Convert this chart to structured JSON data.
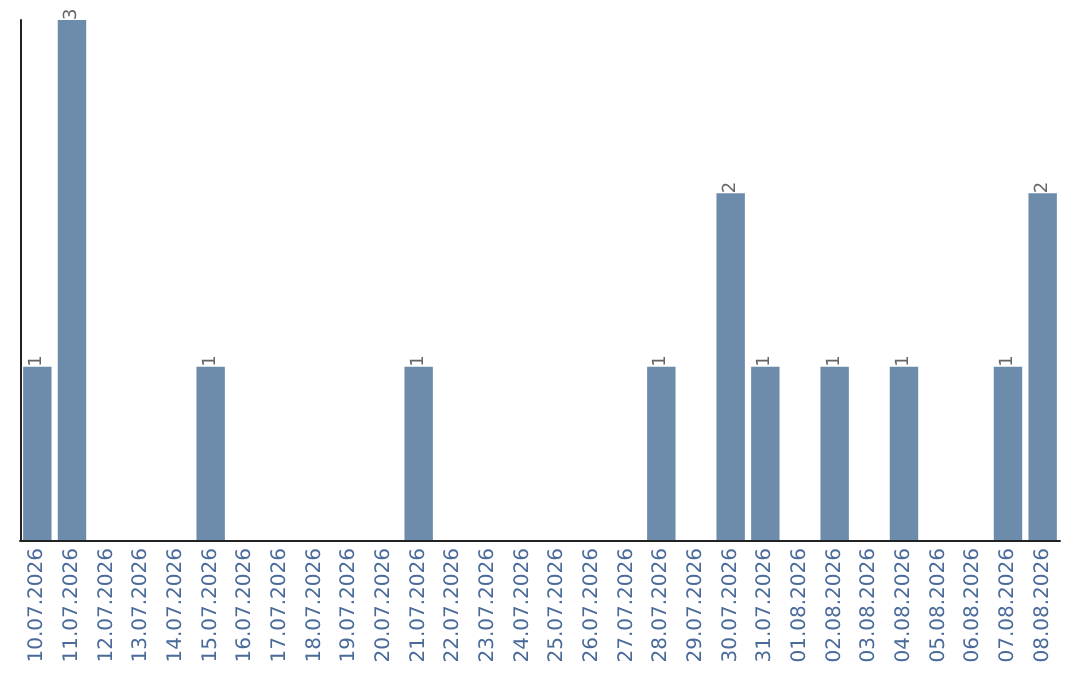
{
  "chart_data": {
    "type": "bar",
    "categories": [
      "10.07.2026",
      "11.07.2026",
      "12.07.2026",
      "13.07.2026",
      "14.07.2026",
      "15.07.2026",
      "16.07.2026",
      "17.07.2026",
      "18.07.2026",
      "19.07.2026",
      "20.07.2026",
      "21.07.2026",
      "22.07.2026",
      "23.07.2026",
      "24.07.2026",
      "25.07.2026",
      "26.07.2026",
      "27.07.2026",
      "28.07.2026",
      "29.07.2026",
      "30.07.2026",
      "31.07.2026",
      "01.08.2026",
      "02.08.2026",
      "03.08.2026",
      "04.08.2026",
      "05.08.2026",
      "06.08.2026",
      "07.08.2026",
      "08.08.2026"
    ],
    "values": [
      1,
      3,
      0,
      0,
      0,
      1,
      0,
      0,
      0,
      0,
      0,
      1,
      0,
      0,
      0,
      0,
      0,
      0,
      1,
      0,
      2,
      1,
      0,
      1,
      0,
      1,
      0,
      0,
      1,
      2
    ],
    "value_labels": [
      "1",
      "3",
      null,
      null,
      null,
      "1",
      null,
      null,
      null,
      null,
      null,
      "1",
      null,
      null,
      null,
      null,
      null,
      null,
      "1",
      null,
      "2",
      "1",
      null,
      "1",
      null,
      "1",
      null,
      null,
      "1",
      "2"
    ],
    "color": "#6d8cac",
    "grid": false,
    "tick_labels": "x"
  }
}
